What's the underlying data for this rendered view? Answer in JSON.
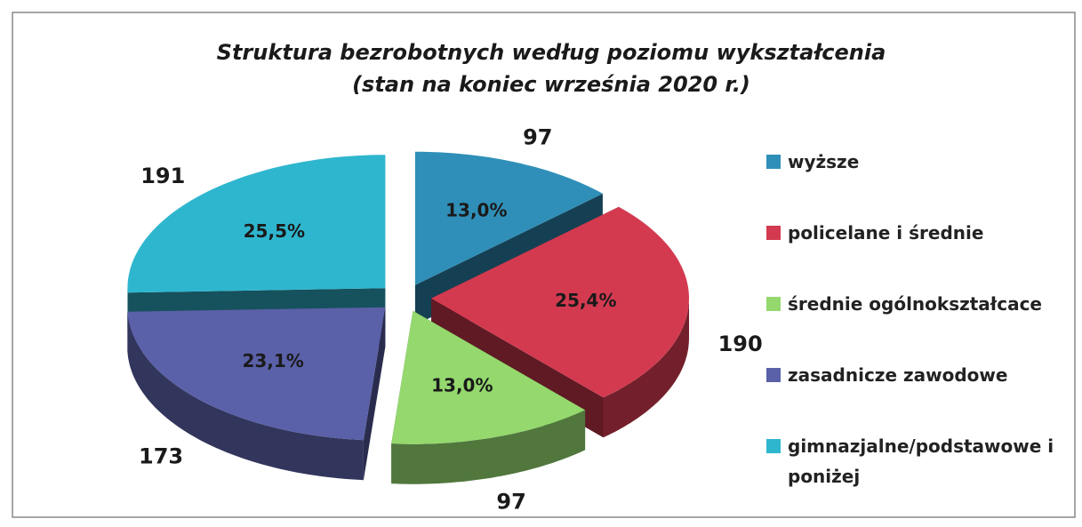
{
  "chart_data": {
    "type": "pie3d",
    "title": "Struktura bezrobotnych według poziomu wykształcenia",
    "subtitle": "(stan na koniec września 2020 r.)",
    "categories": [
      "wyższe",
      "policelane i średnie",
      "średnie ogólnokształcace",
      "zasadnicze zawodowe",
      "gimnazjalne/podstawowe i poniżej"
    ],
    "values": [
      97,
      190,
      97,
      173,
      191
    ],
    "percent_labels": [
      "13,0%",
      "25,4%",
      "13,0%",
      "23,1%",
      "25,5%"
    ],
    "colors": [
      "#2f8fb8",
      "#d33a50",
      "#94d86e",
      "#5a61a8",
      "#2fb6cf"
    ],
    "legend": "right"
  }
}
